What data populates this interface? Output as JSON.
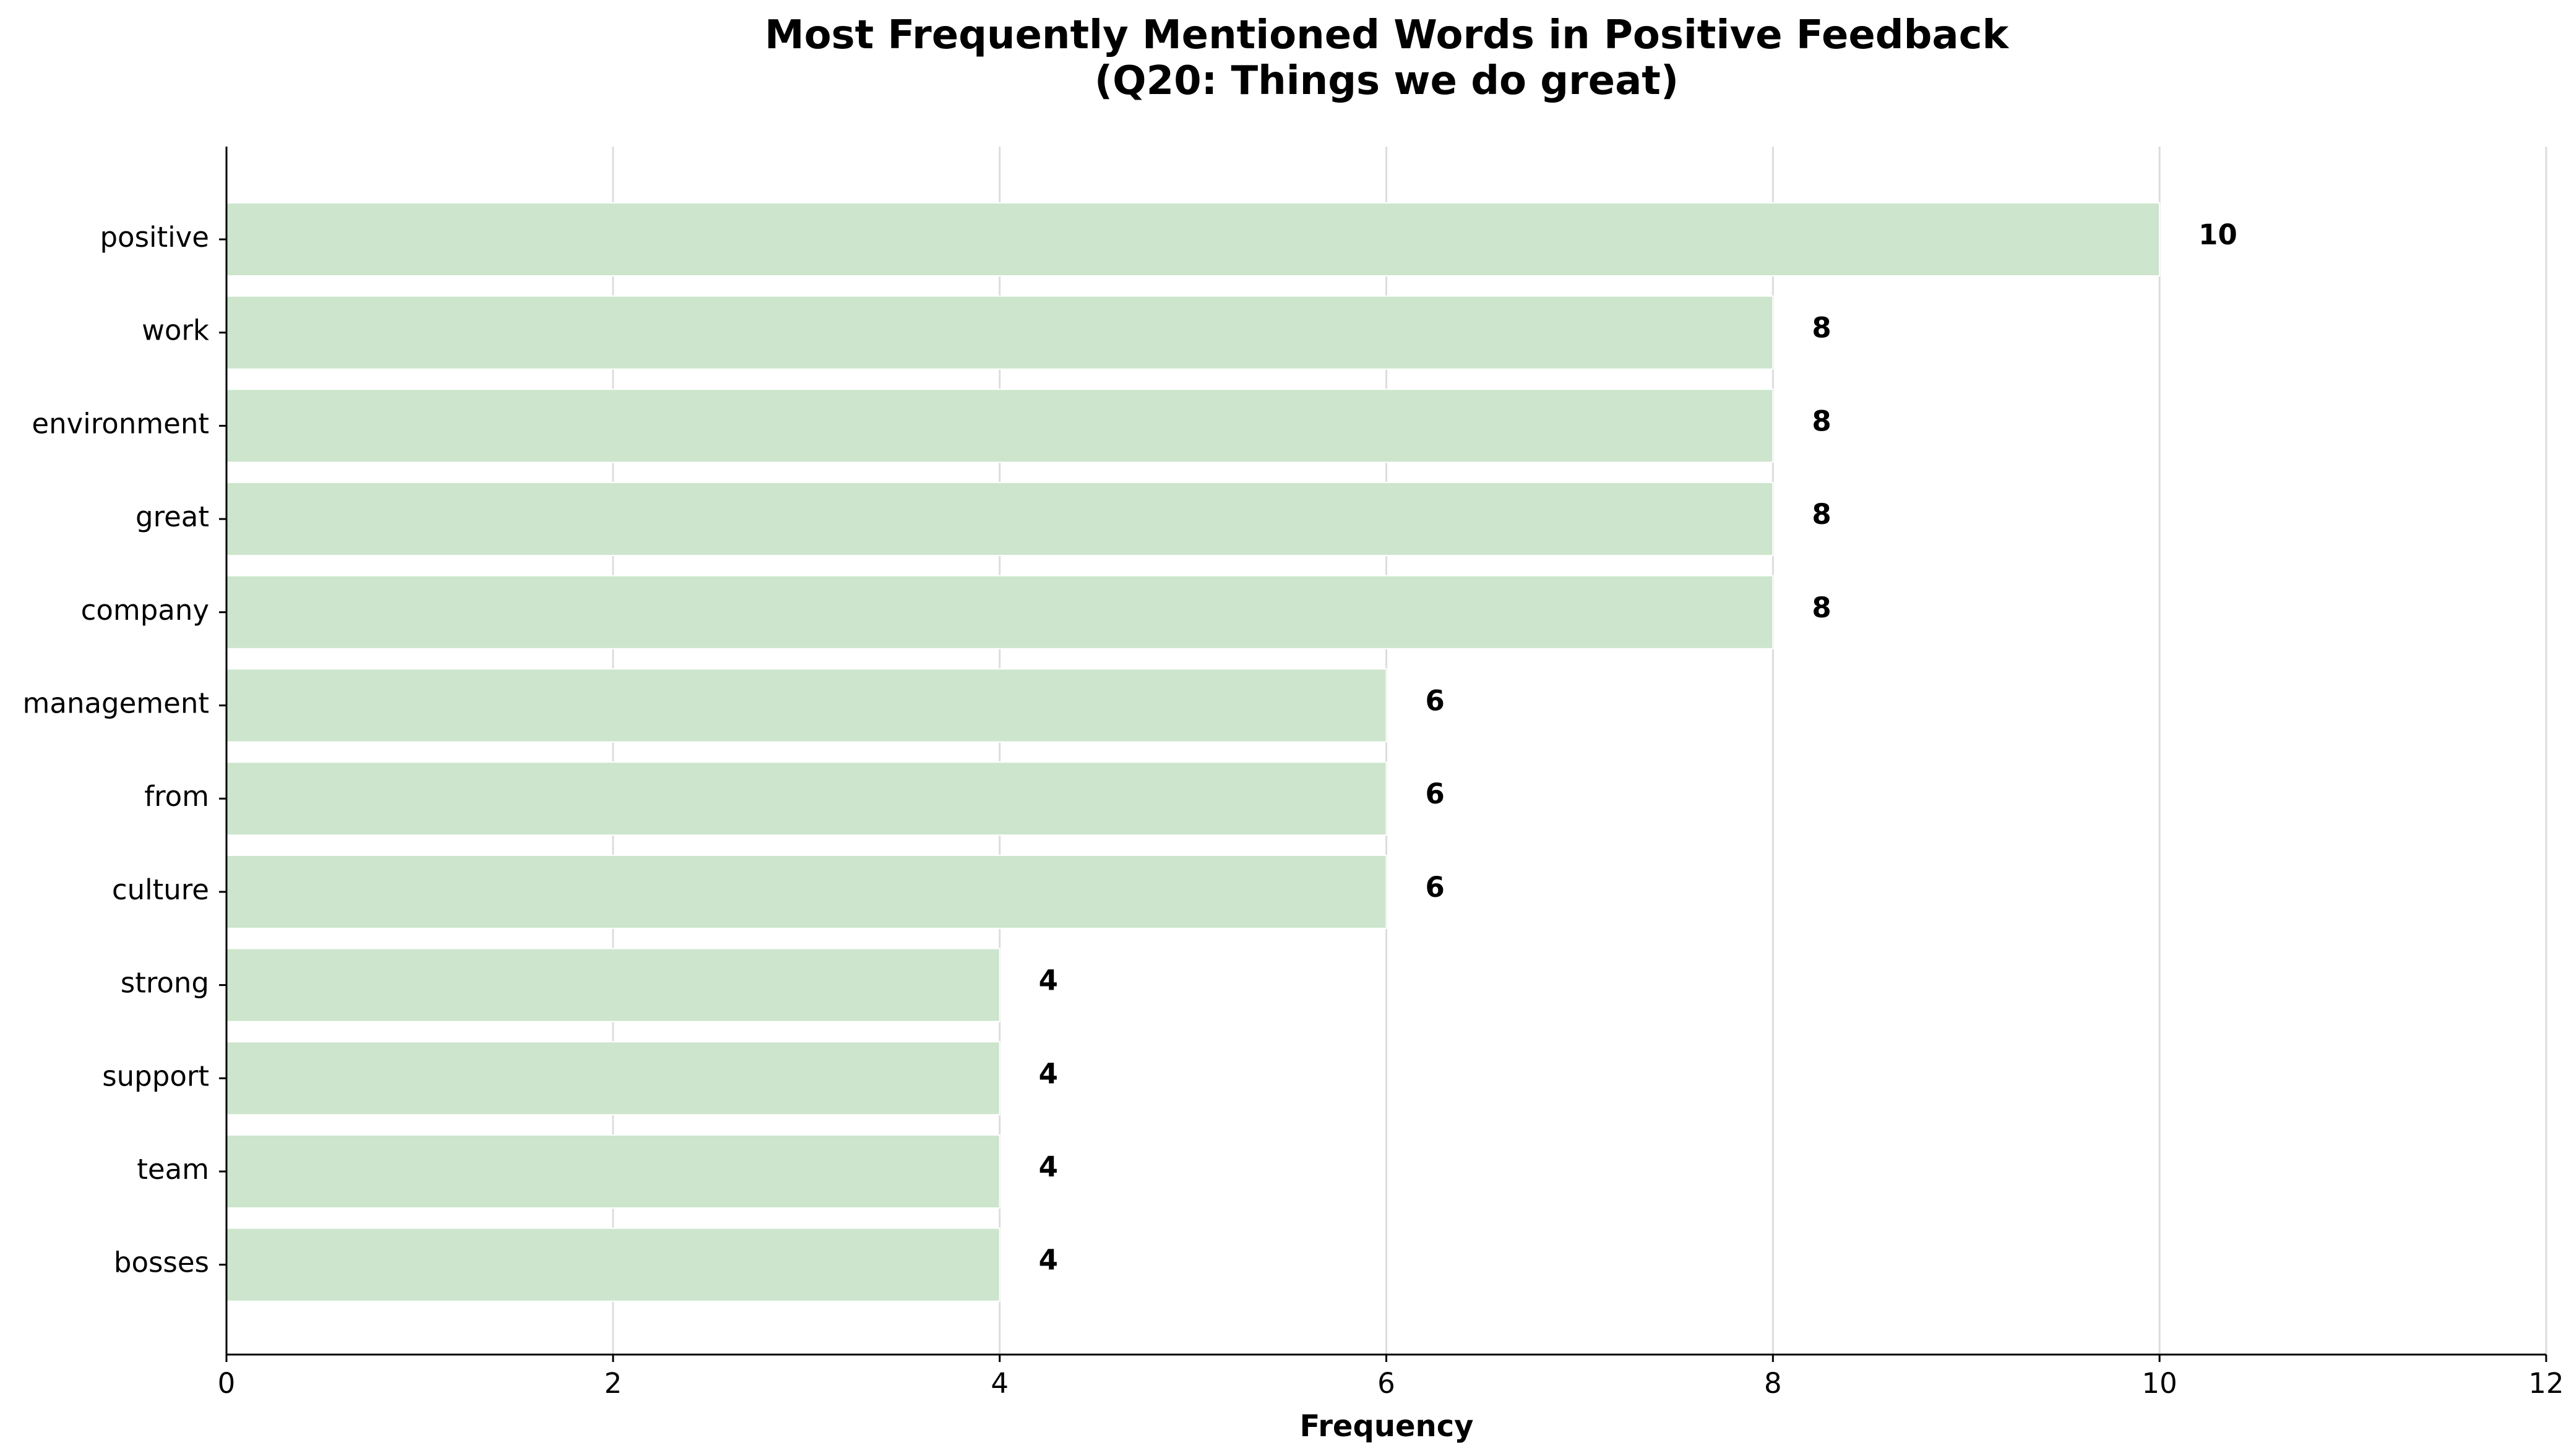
{
  "chart_data": {
    "type": "bar",
    "orientation": "horizontal",
    "title": [
      "Most Frequently Mentioned Words in Positive Feedback",
      "(Q20: Things we do great)"
    ],
    "xlabel": "Frequency",
    "ylabel": "",
    "categories": [
      "positive",
      "work",
      "environment",
      "great",
      "company",
      "management",
      "from",
      "culture",
      "strong",
      "support",
      "team",
      "bosses"
    ],
    "values": [
      10,
      8,
      8,
      8,
      8,
      6,
      6,
      6,
      4,
      4,
      4,
      4
    ],
    "xlim": [
      0,
      12
    ],
    "xticks": [
      "0",
      "2",
      "4",
      "6",
      "8",
      "10",
      "12"
    ],
    "grid": "vertical",
    "legend": "none",
    "bar_color": "#cce5cc",
    "show_value_labels": true
  }
}
